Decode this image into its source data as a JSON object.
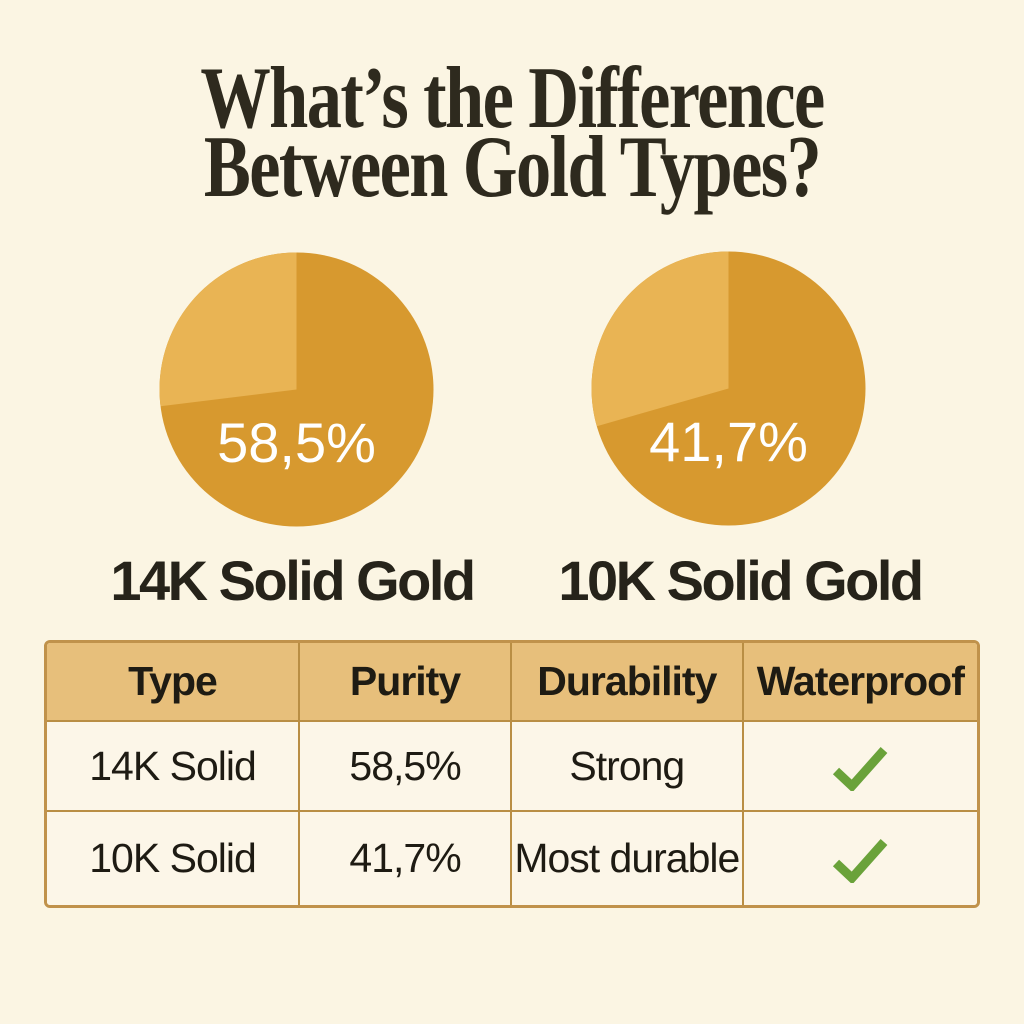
{
  "title": {
    "line1": "What’s the Difference",
    "line2": "Between Gold Types?"
  },
  "chart_data": [
    {
      "type": "pie",
      "title": "14K Solid Gold",
      "value_label": "58,5%",
      "value_pct": 58.5,
      "legend": "none",
      "slices": [
        {
          "name": "dark",
          "color": "#D7992F",
          "sweep_deg": 263
        },
        {
          "name": "light",
          "color": "#E9B454",
          "sweep_deg": 97
        }
      ]
    },
    {
      "type": "pie",
      "title": "10K Solid Gold",
      "value_label": "41,7%",
      "value_pct": 41.7,
      "legend": "none",
      "slices": [
        {
          "name": "dark",
          "color": "#D7992F",
          "sweep_deg": 254
        },
        {
          "name": "light",
          "color": "#E9B454",
          "sweep_deg": 106
        }
      ]
    }
  ],
  "table": {
    "headers": [
      "Type",
      "Purity",
      "Durability",
      "Waterproof"
    ],
    "rows": [
      {
        "type": "14K Solid",
        "purity": "58,5%",
        "durability": "Strong",
        "waterproof": true
      },
      {
        "type": "10K Solid",
        "purity": "41,7%",
        "durability": "Most durable",
        "waterproof": true
      }
    ]
  },
  "icons": {
    "waterproof": "checkmark-icon"
  },
  "colors": {
    "background": "#FBF5E3",
    "title_text": "#2E2A1E",
    "pie_dark": "#D7992F",
    "pie_light": "#E9B454",
    "pie_value_text": "#FFFFFF",
    "caption_text": "#26231A",
    "table_header_bg": "#E7BF7B",
    "table_border": "#B98E44",
    "table_outer_border": "#C0924B",
    "table_cell_bg": "#FCF6E8",
    "table_text": "#1E1B13",
    "check_green": "#6AA23A"
  }
}
